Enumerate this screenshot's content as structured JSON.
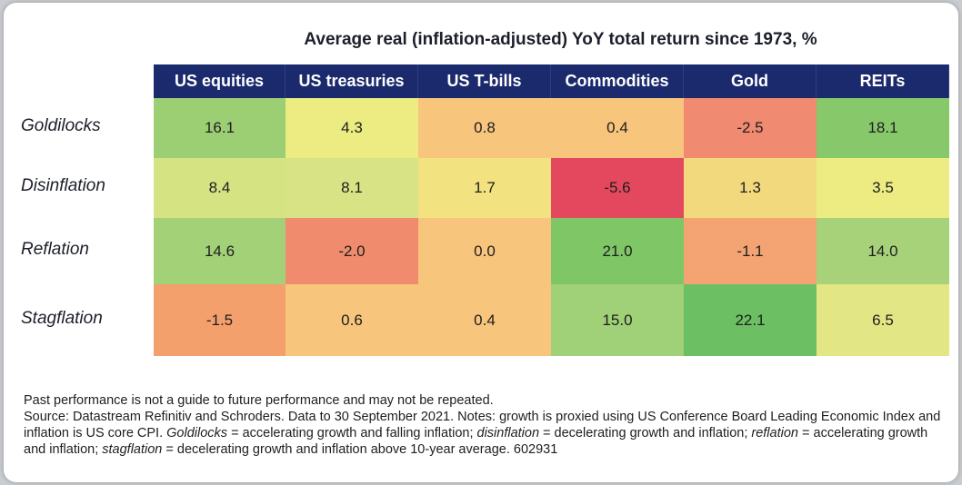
{
  "chart_data": {
    "type": "heatmap",
    "title": "Average real (inflation-adjusted) YoY total return since 1973, %",
    "columns": [
      "US equities",
      "US treasuries",
      "US T-bills",
      "Commodities",
      "Gold",
      "REITs"
    ],
    "rows": [
      "Goldilocks",
      "Disinflation",
      "Reflation",
      "Stagflation"
    ],
    "values": [
      [
        16.1,
        4.3,
        0.8,
        0.4,
        -2.5,
        18.1
      ],
      [
        8.4,
        8.1,
        1.7,
        -5.6,
        1.3,
        3.5
      ],
      [
        14.6,
        -2.0,
        0.0,
        21.0,
        -1.1,
        14.0
      ],
      [
        -1.5,
        0.6,
        0.4,
        15.0,
        22.1,
        6.5
      ]
    ],
    "display_values": [
      [
        "16.1",
        "4.3",
        "0.8",
        "0.4",
        "-2.5",
        "18.1"
      ],
      [
        "8.4",
        "8.1",
        "1.7",
        "-5.6",
        "1.3",
        "3.5"
      ],
      [
        "14.6",
        "-2.0",
        "0.0",
        "21.0",
        "-1.1",
        "14.0"
      ],
      [
        "-1.5",
        "0.6",
        "0.4",
        "15.0",
        "22.1",
        "6.5"
      ]
    ],
    "cell_colors": [
      [
        "#9ccf74",
        "#ecec82",
        "#f7c57c",
        "#f7c57c",
        "#f08a70",
        "#86c86a"
      ],
      [
        "#d5e383",
        "#d7e384",
        "#f3e280",
        "#e3485e",
        "#f3d97e",
        "#ecec82"
      ],
      [
        "#a3d178",
        "#f08c6d",
        "#f7c57c",
        "#7ec666",
        "#f3a472",
        "#a7d27a"
      ],
      [
        "#f3a06d",
        "#f7c57c",
        "#f7c57c",
        "#a0d077",
        "#6cc063",
        "#e2e685"
      ]
    ],
    "header_color": "#1a2a6c"
  },
  "notes": {
    "line1": "Past performance is not a guide to future performance and may not be repeated.",
    "line2a": "Source: Datastream Refinitiv and Schroders. Data to 30 September 2021. Notes: growth is proxied using US Conference Board Leading Economic Index and inflation is US core CPI. ",
    "term_goldilocks": "Goldilocks",
    "def_goldilocks": " = accelerating growth and falling inflation; ",
    "term_disinflation": "disinflation",
    "def_disinflation": " = decelerating growth and inflation; ",
    "term_reflation": "reflation",
    "def_reflation": " = accelerating growth and inflation; ",
    "term_stagflation": "stagflation",
    "def_stagflation": " = decelerating growth and inflation above 10-year average. 602931"
  }
}
